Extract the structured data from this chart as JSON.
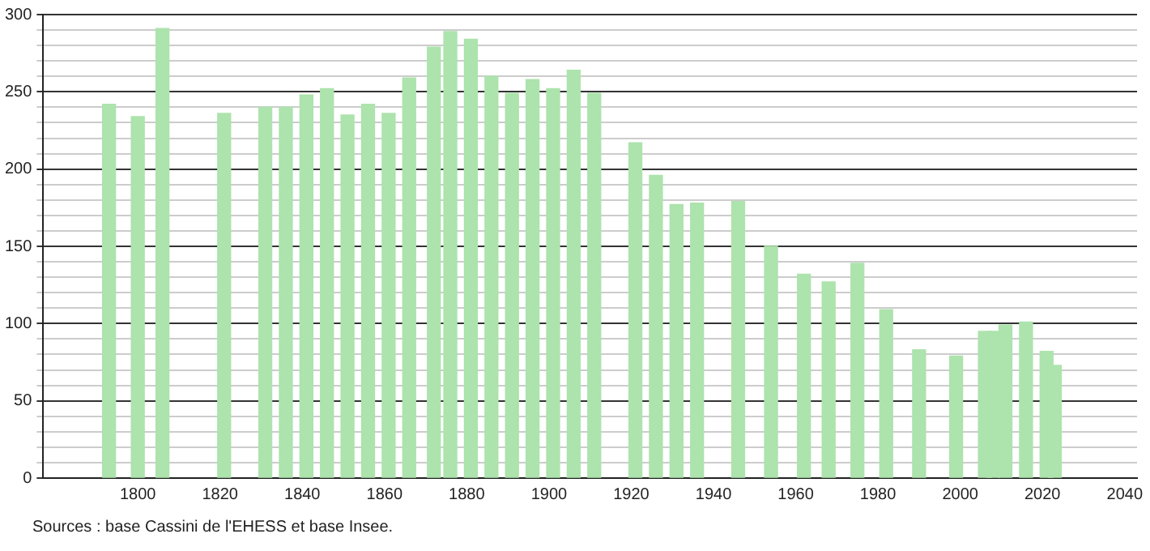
{
  "chart_data": {
    "type": "bar",
    "x": [
      1793,
      1800,
      1806,
      1821,
      1831,
      1836,
      1841,
      1846,
      1851,
      1856,
      1861,
      1866,
      1872,
      1876,
      1881,
      1886,
      1891,
      1896,
      1901,
      1906,
      1911,
      1921,
      1926,
      1931,
      1936,
      1946,
      1954,
      1962,
      1968,
      1975,
      1982,
      1990,
      1999,
      2006,
      2008,
      2011,
      2016,
      2021,
      2023
    ],
    "values": [
      242,
      234,
      291,
      236,
      240,
      240,
      248,
      252,
      235,
      242,
      236,
      259,
      279,
      289,
      284,
      260,
      249,
      258,
      252,
      264,
      249,
      217,
      196,
      177,
      178,
      179,
      150,
      132,
      127,
      139,
      109,
      83,
      79,
      95,
      95,
      99,
      101,
      82,
      73
    ],
    "color": "#ade3ac",
    "xlim": [
      1777,
      2043
    ],
    "xticks": [
      1800,
      1820,
      1840,
      1860,
      1880,
      1900,
      1920,
      1940,
      1960,
      1980,
      2000,
      2020,
      2040
    ],
    "ylim": [
      0,
      300
    ],
    "yticks": [
      0,
      {
        "value": 10,
        "label": null
      },
      {
        "value": 20,
        "label": null
      },
      {
        "value": 30,
        "label": null
      },
      {
        "value": 40,
        "label": null
      },
      50,
      {
        "value": 60,
        "label": null
      },
      {
        "value": 70,
        "label": null
      },
      {
        "value": 80,
        "label": null
      },
      {
        "value": 90,
        "label": null
      },
      100,
      {
        "value": 110,
        "label": null
      },
      {
        "value": 120,
        "label": null
      },
      {
        "value": 130,
        "label": null
      },
      {
        "value": 140,
        "label": null
      },
      150,
      {
        "value": 160,
        "label": null
      },
      {
        "value": 170,
        "label": null
      },
      {
        "value": 180,
        "label": null
      },
      {
        "value": 190,
        "label": null
      },
      200,
      {
        "value": 210,
        "label": null
      },
      {
        "value": 220,
        "label": null
      },
      {
        "value": 230,
        "label": null
      },
      {
        "value": 240,
        "label": null
      },
      250,
      {
        "value": 260,
        "label": null
      },
      {
        "value": 270,
        "label": null
      },
      {
        "value": 280,
        "label": null
      },
      {
        "value": 290,
        "label": null
      },
      300
    ],
    "grid": "y",
    "annotations": [
      "Sources : base Cassini de l'EHESS et base Insee."
    ]
  }
}
